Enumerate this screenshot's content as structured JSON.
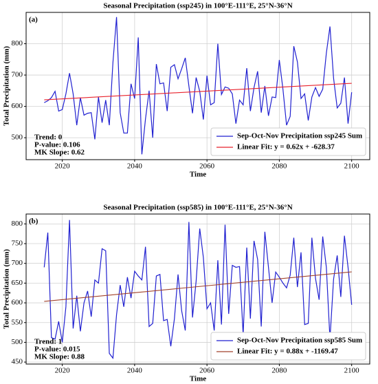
{
  "chart_data": [
    {
      "type": "line",
      "panel": "(a)",
      "title": "Seasonal Precipitation (ssp245) in 100°E-111°E, 25°N-36°N",
      "xlabel": "Time",
      "ylabel": "Total Precipitation (mm)",
      "x": [
        2015,
        2016,
        2017,
        2018,
        2019,
        2020,
        2021,
        2022,
        2023,
        2024,
        2025,
        2026,
        2027,
        2028,
        2029,
        2030,
        2031,
        2032,
        2033,
        2034,
        2035,
        2036,
        2037,
        2038,
        2039,
        2040,
        2041,
        2042,
        2043,
        2044,
        2045,
        2046,
        2047,
        2048,
        2049,
        2050,
        2051,
        2052,
        2053,
        2054,
        2055,
        2056,
        2057,
        2058,
        2059,
        2060,
        2061,
        2062,
        2063,
        2064,
        2065,
        2066,
        2067,
        2068,
        2069,
        2070,
        2071,
        2072,
        2073,
        2074,
        2075,
        2076,
        2077,
        2078,
        2079,
        2080,
        2081,
        2082,
        2083,
        2084,
        2085,
        2086,
        2087,
        2088,
        2089,
        2090,
        2091,
        2092,
        2093,
        2094,
        2095,
        2096,
        2097,
        2098,
        2099,
        2100
      ],
      "series": [
        {
          "name": "Sep-Oct-Nov Precipitation ssp245 Sum",
          "color": "#1f1fd0",
          "values": [
            612,
            618,
            628,
            648,
            585,
            590,
            640,
            706,
            640,
            540,
            628,
            572,
            578,
            580,
            495,
            630,
            548,
            620,
            540,
            740,
            885,
            580,
            515,
            515,
            672,
            625,
            820,
            447,
            560,
            650,
            500,
            735,
            672,
            675,
            585,
            725,
            733,
            688,
            720,
            755,
            665,
            578,
            692,
            648,
            558,
            698,
            605,
            612,
            800,
            638,
            662,
            658,
            640,
            545,
            620,
            605,
            722,
            585,
            660,
            712,
            580,
            665,
            570,
            630,
            628,
            748,
            655,
            540,
            568,
            792,
            742,
            625,
            640,
            555,
            630,
            660,
            632,
            655,
            770,
            855,
            690,
            595,
            610,
            692,
            545,
            645
          ]
        },
        {
          "name": "Linear Fit: y = 0.62x + -628.37",
          "color": "#e8202a",
          "x": [
            2015,
            2100
          ],
          "values": [
            620.93,
            673.63
          ]
        }
      ],
      "annotations": [
        "Trend: 0",
        "P-value: 0.106",
        "MK Slope: 0.62"
      ],
      "xlim": [
        2010,
        2105
      ],
      "xticks": [
        2020,
        2040,
        2060,
        2080,
        2100
      ],
      "ylim": [
        430,
        900
      ],
      "yticks": [
        500,
        600,
        700,
        800
      ],
      "grid": true,
      "legend": "lower right"
    },
    {
      "type": "line",
      "panel": "(b)",
      "title": "Seasonal Precipitation (ssp585) in 100°E-111°E, 25°N-36°N",
      "xlabel": "Time",
      "ylabel": "Total Precipitation (mm)",
      "x": [
        2015,
        2016,
        2017,
        2018,
        2019,
        2020,
        2021,
        2022,
        2023,
        2024,
        2025,
        2026,
        2027,
        2028,
        2029,
        2030,
        2031,
        2032,
        2033,
        2034,
        2035,
        2036,
        2037,
        2038,
        2039,
        2040,
        2041,
        2042,
        2043,
        2044,
        2045,
        2046,
        2047,
        2048,
        2049,
        2050,
        2051,
        2052,
        2053,
        2054,
        2055,
        2056,
        2057,
        2058,
        2059,
        2060,
        2061,
        2062,
        2063,
        2064,
        2065,
        2066,
        2067,
        2068,
        2069,
        2070,
        2071,
        2072,
        2073,
        2074,
        2075,
        2076,
        2077,
        2078,
        2079,
        2080,
        2081,
        2082,
        2083,
        2084,
        2085,
        2086,
        2087,
        2088,
        2089,
        2090,
        2091,
        2092,
        2093,
        2094,
        2095,
        2096,
        2097,
        2098,
        2099,
        2100
      ],
      "series": [
        {
          "name": "Sep-Oct-Nov Precipitation ssp585 Sum",
          "color": "#1f1fd0",
          "values": [
            690,
            778,
            512,
            508,
            553,
            500,
            590,
            810,
            535,
            618,
            528,
            600,
            630,
            565,
            658,
            650,
            737,
            732,
            472,
            460,
            570,
            645,
            590,
            665,
            612,
            680,
            668,
            658,
            742,
            540,
            548,
            668,
            672,
            555,
            558,
            490,
            560,
            672,
            580,
            530,
            805,
            563,
            655,
            788,
            715,
            585,
            600,
            530,
            708,
            545,
            798,
            572,
            695,
            690,
            692,
            520,
            740,
            560,
            757,
            710,
            540,
            780,
            690,
            600,
            678,
            665,
            650,
            638,
            670,
            765,
            640,
            728,
            545,
            548,
            765,
            662,
            608,
            768,
            690,
            508,
            660,
            720,
            615,
            770,
            690,
            595
          ]
        },
        {
          "name": "Linear Fit: y = 0.88x + -1169.47",
          "color": "#a0402a",
          "x": [
            2015,
            2100
          ],
          "values": [
            603.73,
            678.53
          ]
        }
      ],
      "annotations": [
        "Trend: 1",
        "P-value: 0.015",
        "MK Slope: 0.88"
      ],
      "xlim": [
        2010,
        2105
      ],
      "xticks": [
        2020,
        2040,
        2060,
        2080,
        2100
      ],
      "ylim": [
        445,
        825
      ],
      "yticks": [
        450,
        500,
        550,
        600,
        650,
        700,
        750,
        800
      ],
      "grid": true,
      "legend": "lower right"
    }
  ]
}
